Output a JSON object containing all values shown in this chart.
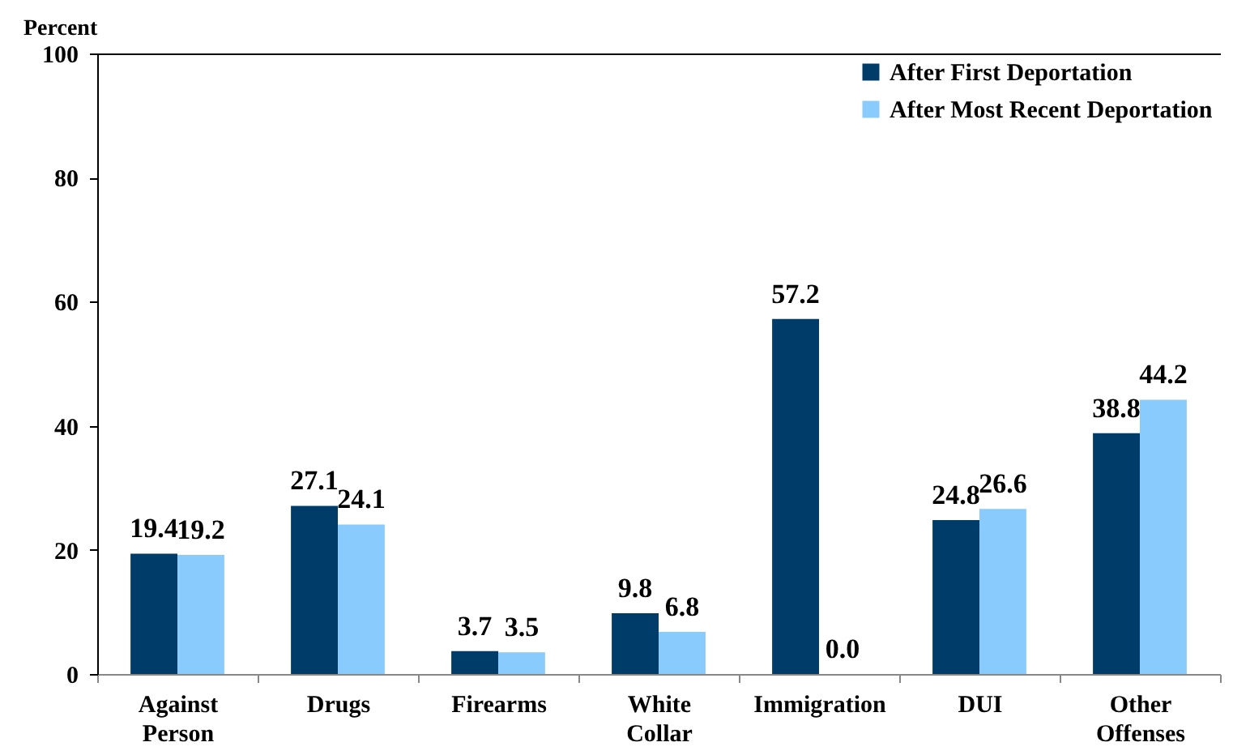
{
  "chart_data": {
    "type": "bar",
    "ylabel": "Percent",
    "categories": [
      "Against Person",
      "Drugs",
      "Firearms",
      "White Collar",
      "Immigration",
      "DUI",
      "Other Offenses"
    ],
    "series": [
      {
        "name": "After First Deportation",
        "color": "#003c6a",
        "values": [
          19.4,
          27.1,
          3.7,
          9.8,
          57.2,
          24.8,
          38.8
        ],
        "value_labels": [
          "19.4",
          "27.1",
          "3.7",
          "9.8",
          "57.2",
          "24.8",
          "38.8"
        ]
      },
      {
        "name": "After Most Recent Deportation",
        "color": "#89cbfc",
        "values": [
          19.2,
          24.1,
          3.5,
          6.8,
          0.0,
          26.6,
          44.2
        ],
        "value_labels": [
          "19.2",
          "24.1",
          "3.5",
          "6.8",
          "0.0",
          "26.6",
          "44.2"
        ]
      }
    ],
    "ylim": [
      0,
      100
    ],
    "yticks": [
      0,
      20,
      40,
      60,
      80,
      100
    ],
    "grid": false,
    "legend": "top right"
  }
}
